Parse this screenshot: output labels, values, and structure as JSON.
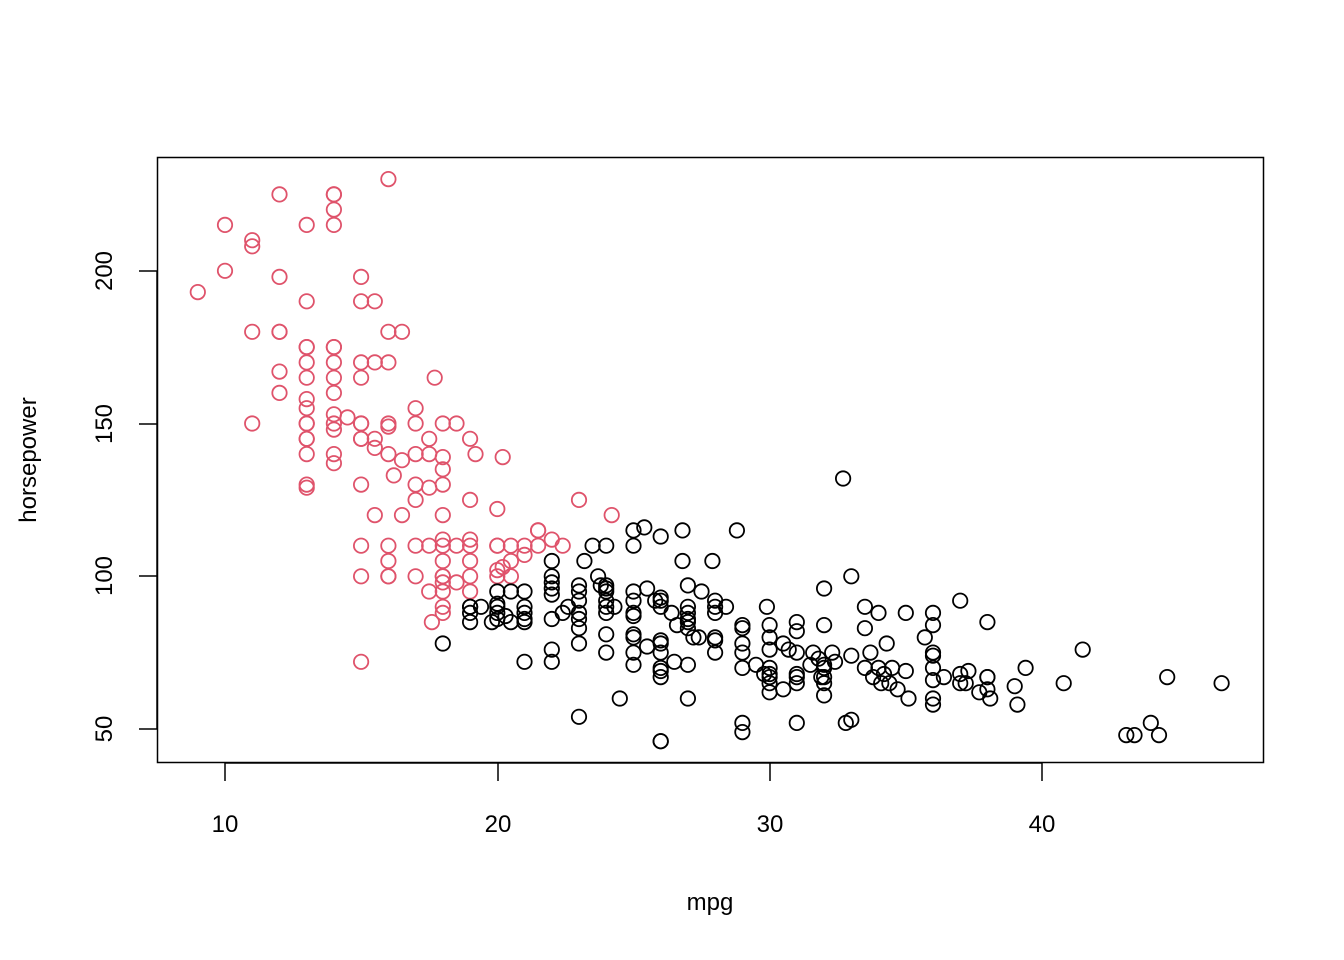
{
  "chart_data": {
    "type": "scatter",
    "title": "",
    "xlabel": "mpg",
    "ylabel": "horsepower",
    "xlim": [
      7.6,
      48.3
    ],
    "ylim": [
      38.9,
      237.5
    ],
    "xticks": [
      10,
      20,
      30,
      40
    ],
    "yticks": [
      50,
      100,
      150,
      200
    ],
    "grid": false,
    "legend": null,
    "marker": "open-circle",
    "series": [
      {
        "name": "group-red",
        "color": "#DF536B",
        "points": [
          [
            9,
            193
          ],
          [
            10,
            215
          ],
          [
            10,
            200
          ],
          [
            11,
            210
          ],
          [
            11,
            208
          ],
          [
            11,
            180
          ],
          [
            11,
            150
          ],
          [
            12,
            225
          ],
          [
            12,
            198
          ],
          [
            12,
            180
          ],
          [
            12,
            180
          ],
          [
            12,
            167
          ],
          [
            12,
            160
          ],
          [
            13,
            215
          ],
          [
            13,
            190
          ],
          [
            13,
            175
          ],
          [
            13,
            175
          ],
          [
            13,
            170
          ],
          [
            13,
            165
          ],
          [
            13,
            158
          ],
          [
            13,
            155
          ],
          [
            13,
            150
          ],
          [
            13,
            150
          ],
          [
            13,
            145
          ],
          [
            13,
            145
          ],
          [
            13,
            140
          ],
          [
            13,
            130
          ],
          [
            13,
            129
          ],
          [
            14,
            225
          ],
          [
            14,
            225
          ],
          [
            14,
            220
          ],
          [
            14,
            215
          ],
          [
            14,
            175
          ],
          [
            14,
            175
          ],
          [
            14,
            170
          ],
          [
            14,
            165
          ],
          [
            14,
            160
          ],
          [
            14,
            153
          ],
          [
            14,
            150
          ],
          [
            14,
            148
          ],
          [
            14,
            140
          ],
          [
            14,
            137
          ],
          [
            14.5,
            152
          ],
          [
            15,
            198
          ],
          [
            15,
            190
          ],
          [
            15,
            170
          ],
          [
            15,
            165
          ],
          [
            15,
            150
          ],
          [
            15,
            150
          ],
          [
            15,
            145
          ],
          [
            15,
            145
          ],
          [
            15,
            130
          ],
          [
            15,
            110
          ],
          [
            15,
            100
          ],
          [
            15,
            72
          ],
          [
            15.5,
            190
          ],
          [
            15.5,
            170
          ],
          [
            15.5,
            145
          ],
          [
            15.5,
            142
          ],
          [
            15.5,
            120
          ],
          [
            16,
            230
          ],
          [
            16,
            180
          ],
          [
            16,
            170
          ],
          [
            16,
            150
          ],
          [
            16,
            149
          ],
          [
            16,
            140
          ],
          [
            16,
            110
          ],
          [
            16,
            105
          ],
          [
            16,
            100
          ],
          [
            16,
            100
          ],
          [
            16.2,
            133
          ],
          [
            16.5,
            180
          ],
          [
            16.5,
            138
          ],
          [
            16.5,
            120
          ],
          [
            17,
            155
          ],
          [
            17,
            150
          ],
          [
            17,
            140
          ],
          [
            17,
            130
          ],
          [
            17,
            125
          ],
          [
            17,
            110
          ],
          [
            17,
            100
          ],
          [
            17.5,
            145
          ],
          [
            17.5,
            140
          ],
          [
            17.5,
            129
          ],
          [
            17.5,
            110
          ],
          [
            17.5,
            95
          ],
          [
            17.6,
            85
          ],
          [
            17.7,
            165
          ],
          [
            18,
            150
          ],
          [
            18,
            139
          ],
          [
            18,
            135
          ],
          [
            18,
            130
          ],
          [
            18,
            120
          ],
          [
            18,
            112
          ],
          [
            18,
            110
          ],
          [
            18,
            105
          ],
          [
            18,
            100
          ],
          [
            18,
            100
          ],
          [
            18,
            98
          ],
          [
            18,
            95
          ],
          [
            18,
            90
          ],
          [
            18,
            88
          ],
          [
            18.5,
            150
          ],
          [
            18.5,
            110
          ],
          [
            18.5,
            98
          ],
          [
            19,
            145
          ],
          [
            19,
            125
          ],
          [
            19,
            112
          ],
          [
            19,
            110
          ],
          [
            19,
            105
          ],
          [
            19,
            100
          ],
          [
            19,
            95
          ],
          [
            19.2,
            140
          ],
          [
            20,
            122
          ],
          [
            20,
            110
          ],
          [
            20,
            110
          ],
          [
            20,
            102
          ],
          [
            20,
            100
          ],
          [
            20.2,
            139
          ],
          [
            20.2,
            103
          ],
          [
            20.5,
            110
          ],
          [
            20.5,
            105
          ],
          [
            20.5,
            100
          ],
          [
            21,
            110
          ],
          [
            21,
            107
          ],
          [
            21.5,
            115
          ],
          [
            21.5,
            115
          ],
          [
            21.5,
            110
          ],
          [
            22,
            112
          ],
          [
            22.4,
            110
          ],
          [
            23,
            125
          ],
          [
            24.2,
            120
          ]
        ]
      },
      {
        "name": "group-black",
        "color": "#000000",
        "points": [
          [
            18,
            78
          ],
          [
            19,
            90
          ],
          [
            19,
            90
          ],
          [
            19,
            88
          ],
          [
            19,
            85
          ],
          [
            19.4,
            90
          ],
          [
            19.8,
            85
          ],
          [
            20,
            95
          ],
          [
            20,
            91
          ],
          [
            20,
            90
          ],
          [
            20,
            88
          ],
          [
            20,
            86
          ],
          [
            20.3,
            87
          ],
          [
            20.5,
            95
          ],
          [
            20.5,
            85
          ],
          [
            21,
            95
          ],
          [
            21,
            90
          ],
          [
            21,
            88
          ],
          [
            21,
            86
          ],
          [
            21,
            85
          ],
          [
            21,
            72
          ],
          [
            22,
            105
          ],
          [
            22,
            100
          ],
          [
            22,
            98
          ],
          [
            22,
            96
          ],
          [
            22,
            94
          ],
          [
            22,
            86
          ],
          [
            22,
            76
          ],
          [
            22,
            72
          ],
          [
            22.4,
            88
          ],
          [
            22.6,
            90
          ],
          [
            23,
            97
          ],
          [
            23,
            95
          ],
          [
            23,
            92
          ],
          [
            23,
            88
          ],
          [
            23,
            86
          ],
          [
            23,
            83
          ],
          [
            23,
            78
          ],
          [
            23,
            54
          ],
          [
            23.2,
            105
          ],
          [
            23.5,
            110
          ],
          [
            23.7,
            100
          ],
          [
            23.8,
            97
          ],
          [
            24,
            110
          ],
          [
            24,
            97
          ],
          [
            24,
            96
          ],
          [
            24,
            95
          ],
          [
            24,
            92
          ],
          [
            24,
            90
          ],
          [
            24,
            88
          ],
          [
            24,
            81
          ],
          [
            24,
            75
          ],
          [
            24.3,
            90
          ],
          [
            24.5,
            60
          ],
          [
            25,
            115
          ],
          [
            25,
            110
          ],
          [
            25,
            95
          ],
          [
            25,
            92
          ],
          [
            25,
            88
          ],
          [
            25,
            87
          ],
          [
            25,
            81
          ],
          [
            25,
            80
          ],
          [
            25,
            75
          ],
          [
            25,
            71
          ],
          [
            25.4,
            116
          ],
          [
            25.5,
            96
          ],
          [
            25.5,
            77
          ],
          [
            25.8,
            92
          ],
          [
            26,
            113
          ],
          [
            26,
            93
          ],
          [
            26,
            92
          ],
          [
            26,
            90
          ],
          [
            26,
            79
          ],
          [
            26,
            78
          ],
          [
            26,
            75
          ],
          [
            26,
            70
          ],
          [
            26,
            69
          ],
          [
            26,
            67
          ],
          [
            26,
            46
          ],
          [
            26,
            46
          ],
          [
            26.4,
            88
          ],
          [
            26.5,
            72
          ],
          [
            26.6,
            84
          ],
          [
            26.8,
            105
          ],
          [
            26.8,
            115
          ],
          [
            27,
            97
          ],
          [
            27,
            90
          ],
          [
            27,
            88
          ],
          [
            27,
            86
          ],
          [
            27,
            85
          ],
          [
            27,
            83
          ],
          [
            27,
            71
          ],
          [
            27,
            60
          ],
          [
            27.2,
            80
          ],
          [
            27.5,
            95
          ],
          [
            27.4,
            80
          ],
          [
            27.9,
            105
          ],
          [
            28,
            92
          ],
          [
            28,
            90
          ],
          [
            28,
            88
          ],
          [
            28,
            80
          ],
          [
            28,
            79
          ],
          [
            28,
            75
          ],
          [
            28.4,
            90
          ],
          [
            28.8,
            115
          ],
          [
            29,
            84
          ],
          [
            29,
            83
          ],
          [
            29,
            78
          ],
          [
            29,
            75
          ],
          [
            29,
            70
          ],
          [
            29,
            52
          ],
          [
            29,
            49
          ],
          [
            29.5,
            71
          ],
          [
            29.8,
            68
          ],
          [
            29.9,
            90
          ],
          [
            30,
            84
          ],
          [
            30,
            80
          ],
          [
            30,
            76
          ],
          [
            30,
            70
          ],
          [
            30,
            68
          ],
          [
            30,
            67
          ],
          [
            30,
            65
          ],
          [
            30,
            62
          ],
          [
            30.5,
            78
          ],
          [
            30.7,
            76
          ],
          [
            30.5,
            63
          ],
          [
            31,
            85
          ],
          [
            31,
            82
          ],
          [
            31,
            75
          ],
          [
            31,
            68
          ],
          [
            31,
            67
          ],
          [
            31,
            65
          ],
          [
            31,
            52
          ],
          [
            31.5,
            71
          ],
          [
            31.6,
            75
          ],
          [
            31.8,
            73
          ],
          [
            31.9,
            67
          ],
          [
            32,
            96
          ],
          [
            32,
            84
          ],
          [
            32,
            71
          ],
          [
            32,
            70
          ],
          [
            32,
            67
          ],
          [
            32,
            65
          ],
          [
            32,
            61
          ],
          [
            32.3,
            75
          ],
          [
            32.4,
            72
          ],
          [
            32.7,
            132
          ],
          [
            32.8,
            52
          ],
          [
            33,
            100
          ],
          [
            33,
            53
          ],
          [
            33,
            74
          ],
          [
            33.5,
            90
          ],
          [
            33.5,
            83
          ],
          [
            33.5,
            70
          ],
          [
            33.7,
            75
          ],
          [
            33.8,
            67
          ],
          [
            34,
            88
          ],
          [
            34,
            70
          ],
          [
            34.1,
            65
          ],
          [
            34.2,
            68
          ],
          [
            34.3,
            78
          ],
          [
            34.4,
            65
          ],
          [
            34.5,
            70
          ],
          [
            34.7,
            63
          ],
          [
            35,
            88
          ],
          [
            35,
            69
          ],
          [
            35.1,
            60
          ],
          [
            35.7,
            80
          ],
          [
            36,
            88
          ],
          [
            36,
            84
          ],
          [
            36,
            75
          ],
          [
            36,
            74
          ],
          [
            36,
            70
          ],
          [
            36,
            66
          ],
          [
            36,
            60
          ],
          [
            36,
            58
          ],
          [
            36.4,
            67
          ],
          [
            37,
            92
          ],
          [
            37,
            68
          ],
          [
            37,
            65
          ],
          [
            37.2,
            65
          ],
          [
            37.3,
            69
          ],
          [
            37.7,
            62
          ],
          [
            38,
            85
          ],
          [
            38,
            67
          ],
          [
            38,
            67
          ],
          [
            38,
            63
          ],
          [
            38.1,
            60
          ],
          [
            39,
            64
          ],
          [
            39.1,
            58
          ],
          [
            39.4,
            70
          ],
          [
            40.8,
            65
          ],
          [
            41.5,
            76
          ],
          [
            43.1,
            48
          ],
          [
            43.4,
            48
          ],
          [
            44,
            52
          ],
          [
            44.3,
            48
          ],
          [
            44.6,
            67
          ],
          [
            46.6,
            65
          ]
        ]
      }
    ]
  },
  "axes": {
    "x_title": "mpg",
    "y_title": "horsepower",
    "x_tick_labels": [
      "10",
      "20",
      "30",
      "40"
    ],
    "y_tick_labels": [
      "50",
      "100",
      "150",
      "200"
    ]
  }
}
